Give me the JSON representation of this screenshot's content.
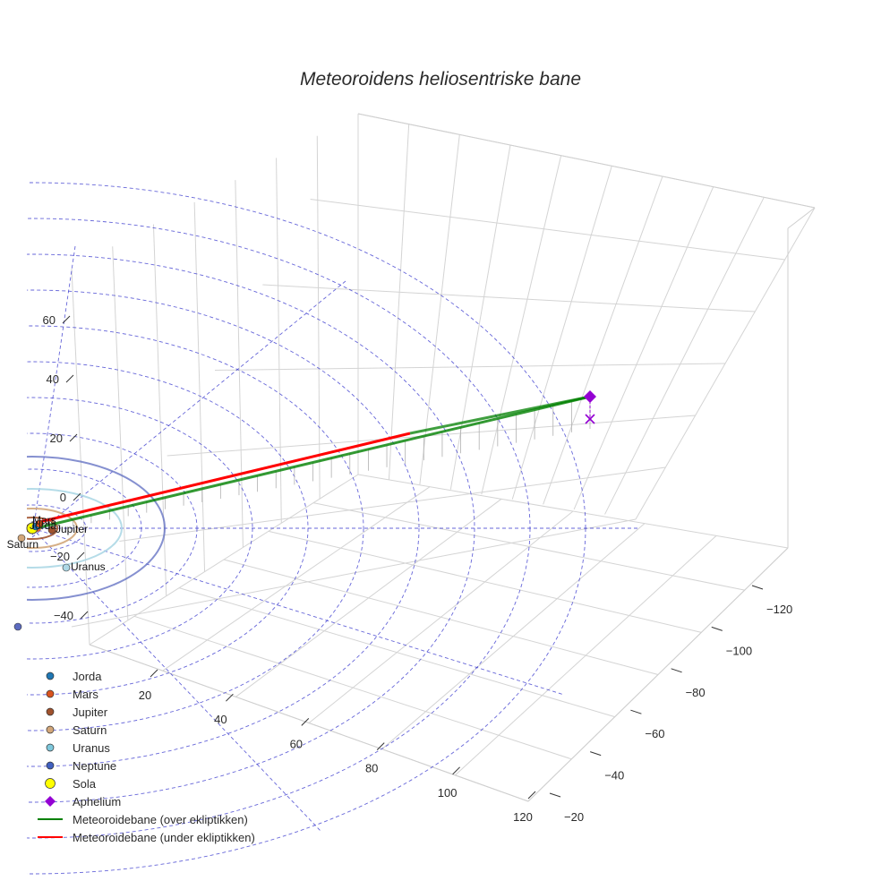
{
  "chart_data": {
    "type": "line3d",
    "title": "Meteoroidens heliosentriske bane",
    "x_axis": {
      "ticks": [
        20,
        40,
        60,
        80,
        100,
        120
      ]
    },
    "y_axis": {
      "ticks": [
        -20,
        -40,
        -60,
        -80,
        -100,
        -120
      ]
    },
    "z_axis": {
      "ticks": [
        -40,
        -20,
        0,
        20,
        40,
        60
      ]
    },
    "grid": true,
    "legend_position": "bottom-left",
    "planet_orbits": [
      {
        "name": "Jorda",
        "radius_au": 1.0,
        "color": "#1f77b4"
      },
      {
        "name": "Mars",
        "radius_au": 1.52,
        "color": "#d9531e"
      },
      {
        "name": "Jupiter",
        "radius_au": 5.2,
        "color": "#a0522d"
      },
      {
        "name": "Saturn",
        "radius_au": 9.54,
        "color": "#d2a679"
      },
      {
        "name": "Uranus",
        "radius_au": 19.2,
        "color": "#add8e6"
      },
      {
        "name": "Neptune",
        "radius_au": 30.1,
        "color": "#5c6bc0"
      }
    ],
    "reference_circles_au": [
      10,
      20,
      30,
      40,
      50,
      60,
      70,
      80,
      90,
      100
    ],
    "sun": {
      "name": "Sola",
      "color": "#ffff00"
    },
    "aphelium": {
      "name": "Aphelium",
      "color": "#9400d3",
      "x": -8,
      "y": -118,
      "z": 26
    },
    "trajectory": {
      "above": {
        "name": "Meteoroidebane (over ekliptikken)",
        "color": "#008000"
      },
      "below": {
        "name": "Meteoroidebane (under ekliptikken)",
        "color": "#ff0000"
      }
    }
  },
  "legend": [
    {
      "label": "Jorda",
      "color": "#1f77b4",
      "symbol": "circle"
    },
    {
      "label": "Mars",
      "color": "#d9531e",
      "symbol": "circle"
    },
    {
      "label": "Jupiter",
      "color": "#a0522d",
      "symbol": "circle"
    },
    {
      "label": "Saturn",
      "color": "#d2a679",
      "symbol": "circle"
    },
    {
      "label": "Uranus",
      "color": "#7ec8dc",
      "symbol": "circle"
    },
    {
      "label": "Neptune",
      "color": "#4060c0",
      "symbol": "circle"
    },
    {
      "label": "Sola",
      "color": "#ffff00",
      "symbol": "circle-large"
    },
    {
      "label": "Aphelium",
      "color": "#9400d3",
      "symbol": "diamond"
    },
    {
      "label": "Meteoroidebane (over ekliptikken)",
      "color": "#008000",
      "symbol": "line"
    },
    {
      "label": "Meteoroidebane (under ekliptikken)",
      "color": "#ff0000",
      "symbol": "line"
    }
  ]
}
